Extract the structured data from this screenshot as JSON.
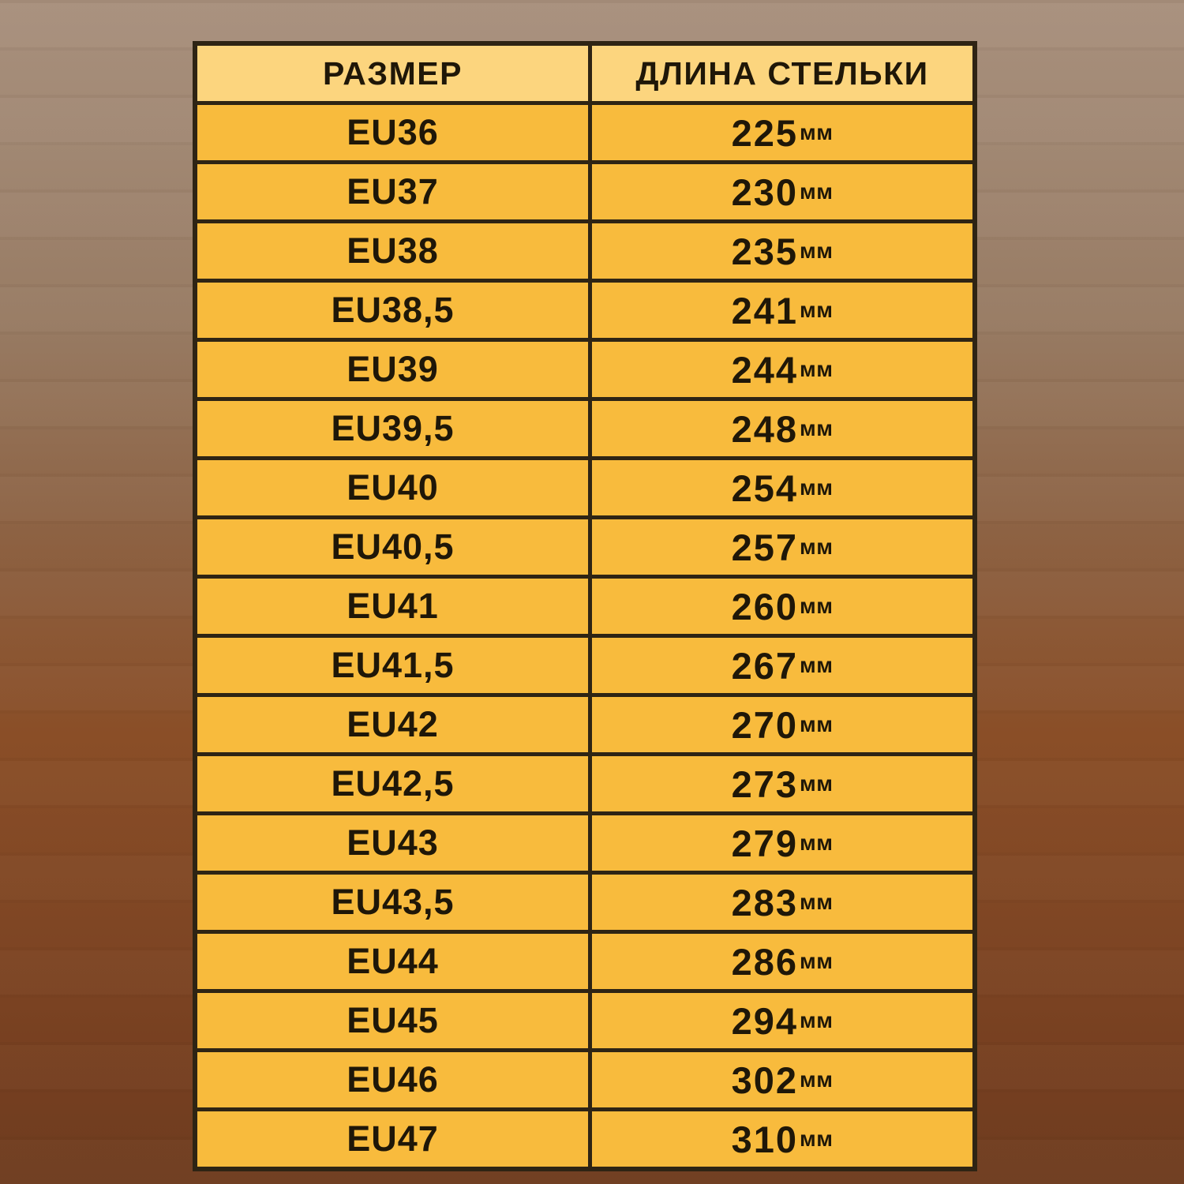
{
  "table": {
    "headers": [
      {
        "id": "size",
        "label": "РАЗМЕР"
      },
      {
        "id": "insole_length",
        "label": "ДЛИНА СТЕЛЬКИ"
      }
    ],
    "unit_label": "мм",
    "rows": [
      {
        "size": "EU36",
        "length": "225"
      },
      {
        "size": "EU37",
        "length": "230"
      },
      {
        "size": "EU38",
        "length": "235"
      },
      {
        "size": "EU38,5",
        "length": "241"
      },
      {
        "size": "EU39",
        "length": "244"
      },
      {
        "size": "EU39,5",
        "length": "248"
      },
      {
        "size": "EU40",
        "length": "254"
      },
      {
        "size": "EU40,5",
        "length": "257"
      },
      {
        "size": "EU41",
        "length": "260"
      },
      {
        "size": "EU41,5",
        "length": "267"
      },
      {
        "size": "EU42",
        "length": "270"
      },
      {
        "size": "EU42,5",
        "length": "273"
      },
      {
        "size": "EU43",
        "length": "279"
      },
      {
        "size": "EU43,5",
        "length": "283"
      },
      {
        "size": "EU44",
        "length": "286"
      },
      {
        "size": "EU45",
        "length": "294"
      },
      {
        "size": "EU46",
        "length": "302"
      },
      {
        "size": "EU47",
        "length": "310"
      }
    ],
    "colors": {
      "header_fill": "#FCD57E",
      "row_fill": "#F8BB3D",
      "border": "#2E2414",
      "text": "#1F1708"
    }
  },
  "background": {
    "type": "wood-gradient",
    "top_color": "#A8907D",
    "middle_color": "#8A4E27",
    "bottom_color": "#6E3C1F"
  }
}
